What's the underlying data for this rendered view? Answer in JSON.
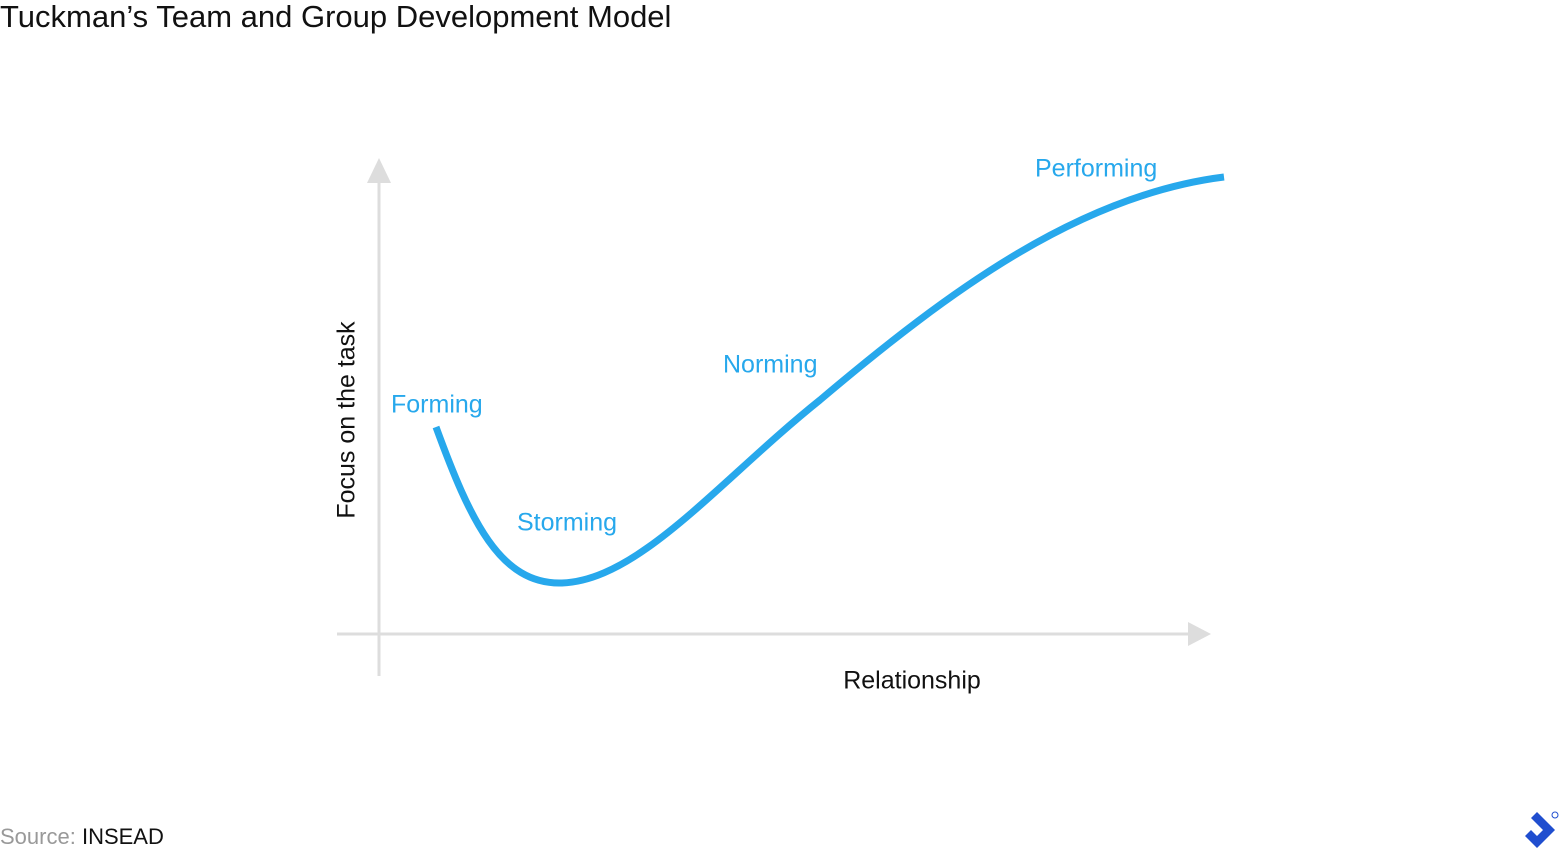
{
  "header": {
    "title": "Tuckman’s Team and Group Development Model"
  },
  "axes": {
    "y_label": "Focus on the task",
    "x_label": "Relationship"
  },
  "stages": [
    {
      "label": "Forming"
    },
    {
      "label": "Storming"
    },
    {
      "label": "Norming"
    },
    {
      "label": "Performing"
    }
  ],
  "footer": {
    "source_label": "Source:",
    "source_name": "INSEAD"
  }
}
